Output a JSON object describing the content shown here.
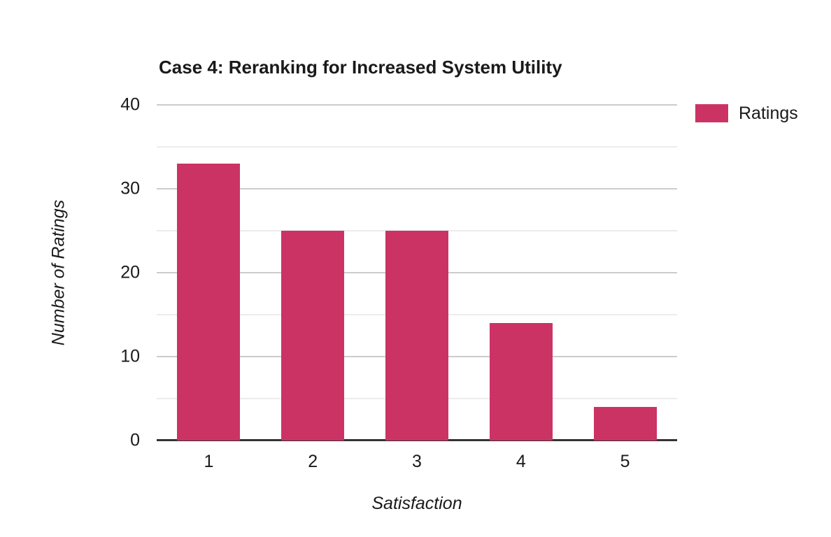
{
  "chart_data": {
    "type": "bar",
    "title": "Case 4: Reranking for Increased System Utility",
    "categories": [
      "1",
      "2",
      "3",
      "4",
      "5"
    ],
    "series": [
      {
        "name": "Ratings",
        "values": [
          33,
          25,
          25,
          14,
          4
        ],
        "color": "#cb3365"
      }
    ],
    "xlabel": "Satisfaction",
    "ylabel": "Number of Ratings",
    "ylim": [
      0,
      40
    ],
    "y_major_ticks": [
      0,
      10,
      20,
      30,
      40
    ],
    "y_minor_ticks": [
      5,
      15,
      25,
      35
    ],
    "grid": "on",
    "legend_position": "right",
    "colors": {
      "bar": "#cb3365",
      "grid_major": "#cccccc",
      "grid_minor": "#ececec",
      "axis_line": "#333333",
      "text": "#1a1a1a",
      "background": "#ffffff"
    }
  }
}
